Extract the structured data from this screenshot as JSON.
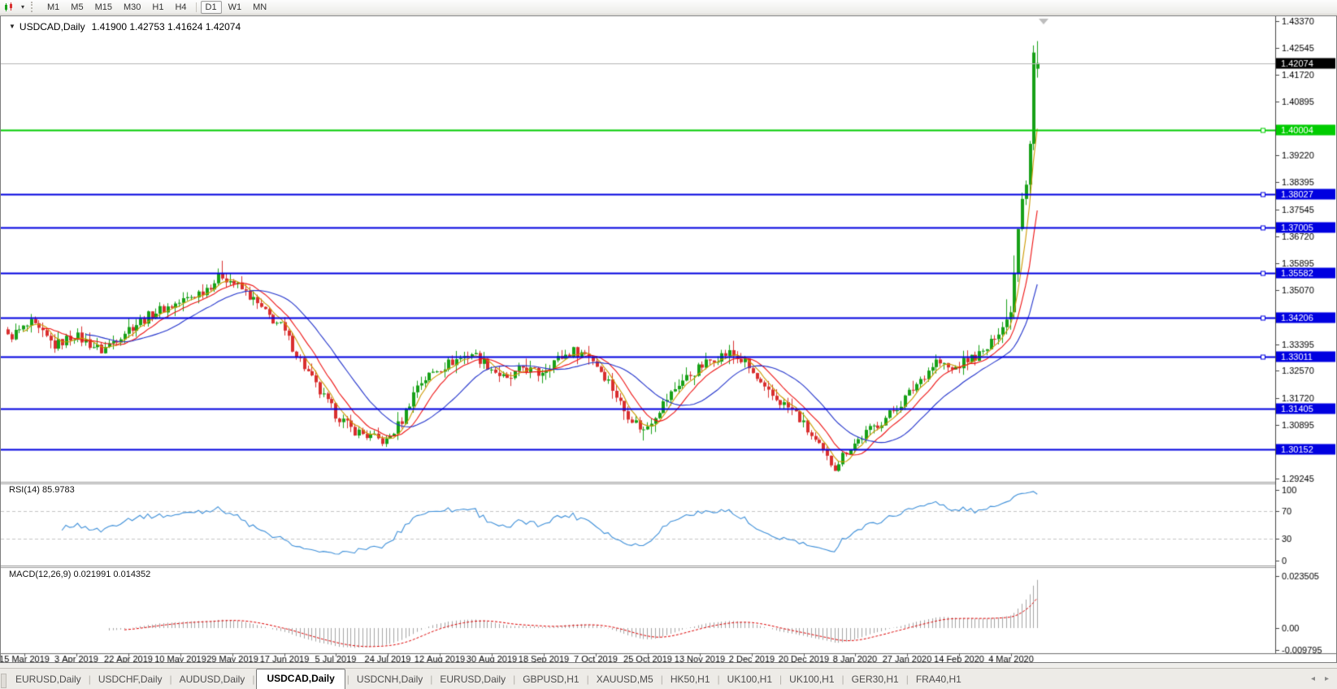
{
  "toolbar": {
    "timeframes": [
      "M1",
      "M5",
      "M15",
      "M30",
      "H1",
      "H4",
      "D1",
      "W1",
      "MN"
    ],
    "active_timeframe": "D1",
    "group_break_before": "D1"
  },
  "icons": {
    "toolbar_caret": "▾",
    "collapse_triangle": "▼",
    "tabs_scroll_left": "◂",
    "tabs_scroll_right": "▸"
  },
  "chart": {
    "title_symbol": "USDCAD,Daily",
    "title_values": "1.41900 1.42753 1.41624 1.42074"
  },
  "indicators": {
    "rsi_label": "RSI(14) 85.9783",
    "macd_label": "MACD(12,26,9) 0.021991 0.014352"
  },
  "tabs": {
    "items": [
      "EURUSD,Daily",
      "USDCHF,Daily",
      "AUDUSD,Daily",
      "USDCAD,Daily",
      "USDCNH,Daily",
      "EURUSD,Daily",
      "GBPUSD,H1",
      "XAUUSD,M5",
      "HK50,H1",
      "UK100,H1",
      "UK100,H1",
      "GER30,H1",
      "FRA40,H1"
    ],
    "active_index": 3
  },
  "chart_data": {
    "type": "candlestick",
    "symbol": "USDCAD",
    "timeframe": "Daily",
    "last_ohlc": {
      "open": 1.419,
      "high": 1.42753,
      "low": 1.41624,
      "close": 1.42074
    },
    "current_price": 1.42074,
    "candle_count": 265,
    "price_anchors": [
      [
        0,
        1.336
      ],
      [
        6,
        1.3402
      ],
      [
        12,
        1.3335
      ],
      [
        17,
        1.3368
      ],
      [
        24,
        1.332
      ],
      [
        31,
        1.3388
      ],
      [
        38,
        1.344
      ],
      [
        44,
        1.3468
      ],
      [
        50,
        1.3505
      ],
      [
        55,
        1.3552
      ],
      [
        58,
        1.3528
      ],
      [
        62,
        1.3488
      ],
      [
        66,
        1.3435
      ],
      [
        70,
        1.3395
      ],
      [
        75,
        1.329
      ],
      [
        80,
        1.319
      ],
      [
        84,
        1.3125
      ],
      [
        88,
        1.3078
      ],
      [
        93,
        1.3052
      ],
      [
        97,
        1.3038
      ],
      [
        101,
        1.3105
      ],
      [
        105,
        1.3215
      ],
      [
        110,
        1.3262
      ],
      [
        115,
        1.3292
      ],
      [
        119,
        1.3312
      ],
      [
        123,
        1.3275
      ],
      [
        128,
        1.3225
      ],
      [
        132,
        1.3268
      ],
      [
        136,
        1.3248
      ],
      [
        140,
        1.3288
      ],
      [
        145,
        1.3318
      ],
      [
        149,
        1.3308
      ],
      [
        154,
        1.3225
      ],
      [
        158,
        1.3135
      ],
      [
        163,
        1.3072
      ],
      [
        167,
        1.314
      ],
      [
        172,
        1.3218
      ],
      [
        176,
        1.3255
      ],
      [
        181,
        1.3298
      ],
      [
        185,
        1.3312
      ],
      [
        189,
        1.3282
      ],
      [
        194,
        1.3195
      ],
      [
        198,
        1.3162
      ],
      [
        202,
        1.3125
      ],
      [
        206,
        1.3055
      ],
      [
        210,
        1.2985
      ],
      [
        212,
        1.2962
      ],
      [
        215,
        1.3012
      ],
      [
        220,
        1.3065
      ],
      [
        225,
        1.3112
      ],
      [
        229,
        1.3158
      ],
      [
        234,
        1.3232
      ],
      [
        238,
        1.3288
      ],
      [
        242,
        1.3258
      ],
      [
        246,
        1.3292
      ],
      [
        250,
        1.3312
      ],
      [
        253,
        1.3355
      ],
      [
        255,
        1.3392
      ],
      [
        257,
        1.3438
      ],
      [
        258,
        1.3558
      ],
      [
        259,
        1.3695
      ],
      [
        260,
        1.3788
      ],
      [
        261,
        1.3832
      ],
      [
        262,
        1.3958
      ],
      [
        263,
        1.424
      ],
      [
        264,
        1.42074
      ]
    ],
    "key_extremes": [
      {
        "i": 55,
        "type": "high",
        "price": 1.3597
      },
      {
        "i": 97,
        "type": "low",
        "price": 1.3022
      },
      {
        "i": 163,
        "type": "low",
        "price": 1.3042
      },
      {
        "i": 212,
        "type": "low",
        "price": 1.2948
      },
      {
        "i": 263,
        "type": "high",
        "price": 1.4262
      }
    ],
    "candle_up_color": "#18a118",
    "candle_down_color": "#d92f2f",
    "y_axis": {
      "top_price": 1.4337,
      "bottom_price": 1.29245
    },
    "y_ticks": [
      1.4337,
      1.42545,
      1.4172,
      1.40895,
      1.3922,
      1.38395,
      1.37545,
      1.3672,
      1.35895,
      1.3507,
      1.33395,
      1.3257,
      1.3172,
      1.30895,
      1.29245
    ],
    "hlines": [
      {
        "price": 1.40004,
        "color": "#00cc00",
        "handle": true
      },
      {
        "price": 1.38027,
        "color": "#0000e0",
        "handle": true
      },
      {
        "price": 1.37005,
        "color": "#0000e0",
        "handle": true
      },
      {
        "price": 1.35582,
        "color": "#0000e0",
        "handle": true
      },
      {
        "price": 1.34206,
        "color": "#0000e0",
        "handle": true
      },
      {
        "price": 1.33011,
        "color": "#0000e0",
        "handle": true
      },
      {
        "price": 1.31405,
        "color": "#0000e0",
        "handle": false
      },
      {
        "price": 1.30152,
        "color": "#0000e0",
        "handle": false
      }
    ],
    "current_price_line_color": "#b3b3b3",
    "current_price_badge_color": "#000000",
    "moving_averages": [
      {
        "period": 5,
        "color": "#cc9900"
      },
      {
        "period": 10,
        "color": "#ee1111"
      },
      {
        "period": 21,
        "color": "#2233cc"
      }
    ],
    "rsi": {
      "period": 14,
      "current": 85.9783,
      "levels": [
        70,
        30
      ],
      "ticks": [
        100,
        70,
        30,
        0
      ],
      "color": "#3d8fd9"
    },
    "macd": {
      "fast": 12,
      "slow": 26,
      "signal": 9,
      "current_macd": 0.021991,
      "current_signal": 0.014352,
      "histogram_color": "#a3a3a3",
      "signal_color": "#dd0000",
      "ticks": [
        {
          "label": "0.023505",
          "value": 0.023505
        },
        {
          "label": "0.00",
          "value": 0
        },
        {
          "label": "-0.009795",
          "value": -0.009795
        }
      ]
    },
    "x_labels": [
      "15 Mar 2019",
      "3 Apr 2019",
      "22 Apr 2019",
      "10 May 2019",
      "29 May 2019",
      "17 Jun 2019",
      "5 Jul 2019",
      "24 Jul 2019",
      "12 Aug 2019",
      "30 Aug 2019",
      "18 Sep 2019",
      "7 Oct 2019",
      "25 Oct 2019",
      "13 Nov 2019",
      "2 Dec 2019",
      "20 Dec 2019",
      "8 Jan 2020",
      "27 Jan 2020",
      "14 Feb 2020",
      "4 Mar 2020"
    ]
  }
}
